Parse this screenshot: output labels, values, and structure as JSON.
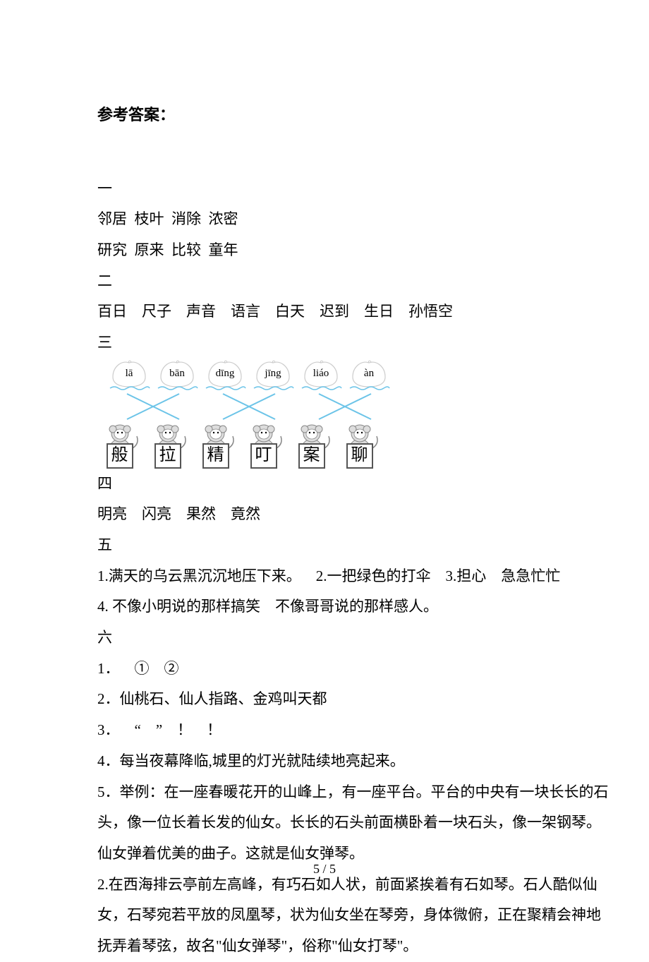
{
  "title": "参考答案：",
  "sec1": {
    "num": "一",
    "l1": "邻居  枝叶  消除  浓密",
    "l2": "研究  原来  比较  童年"
  },
  "sec2": {
    "num": "二",
    "l1": "百日    尺子    声音    语言    白天    迟到    生日    孙悟空"
  },
  "sec3": {
    "num": "三",
    "peaches": [
      "lā",
      "bān",
      "dīng",
      "jīng",
      "liáo",
      "àn"
    ],
    "chars": [
      "般",
      "拉",
      "精",
      "叮",
      "案",
      "聊"
    ],
    "peach_stroke": "#cccccc",
    "peach_fill": "#ffffff",
    "wave_stroke": "#6cc4e8",
    "cross_stroke": "#6cc4e8",
    "monkey_stroke": "#888888",
    "monkey_fill": "#dddddd",
    "box_border": "#555555"
  },
  "sec4": {
    "num": "四",
    "l1": "明亮    闪亮    果然    竟然"
  },
  "sec5": {
    "num": "五",
    "l1": "1.满天的乌云黑沉沉地压下来。    2.一把绿色的打伞    3.担心    急急忙忙",
    "l2": "4. 不像小明说的那样搞笑    不像哥哥说的那样感人。"
  },
  "sec6": {
    "num": "六",
    "l1": "1．    ①    ②",
    "l2": "2．仙桃石、仙人指路、金鸡叫天都",
    "l3": "3．    “    ”    ！    ！",
    "l4": "4．每当夜幕降临,城里的灯光就陆续地亮起来。",
    "l5": "5．举例：在一座春暖花开的山峰上，有一座平台。平台的中央有一块长长的石",
    "l6": "头，像一位长着长发的仙女。长长的石头前面横卧着一块石头，像一架钢琴。",
    "l7": "仙女弹着优美的曲子。这就是仙女弹琴。",
    "l8": "2.在西海排云亭前左高峰，有巧石如人状，前面紧挨着有石如琴。石人酷似仙",
    "l9": "女，石琴宛若平放的凤凰琴，状为仙女坐在琴旁，身体微俯，正在聚精会神地",
    "l10": "抚弄着琴弦，故名\"仙女弹琴\"，俗称\"仙女打琴\"。"
  },
  "footer": "5 / 5"
}
